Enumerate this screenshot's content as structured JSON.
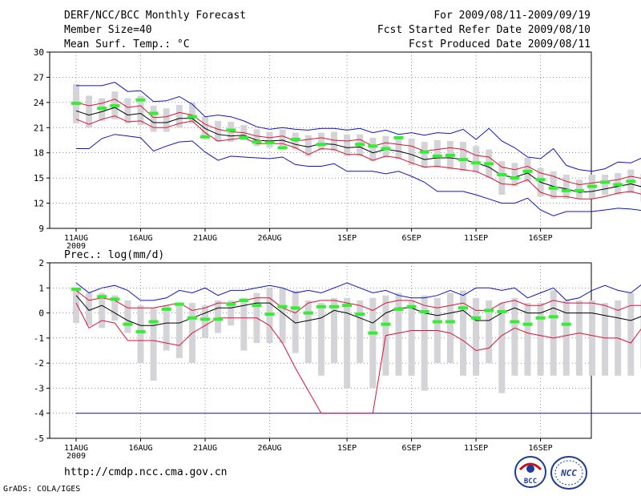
{
  "header": {
    "title": "DERF/NCC/BCC Monthly Forecast",
    "member_size": "Member Size=40",
    "variable": "Mean Surf. Temp.: °C",
    "forecast_range": "For 2009/08/11-2009/09/19",
    "started_date": "Fcst Started Refer Date 2009/08/10",
    "produced_date": "Fcst Produced Date 2009/08/11"
  },
  "footer": {
    "url": "http://cmdp.ncc.cma.gov.cn",
    "credit": "GrADS: COLA/IGES",
    "logo_bcc": "BCC",
    "logo_ncc": "NCC"
  },
  "colors": {
    "box": "#d4d4d8",
    "mean": "#000000",
    "spread": "#dd1133",
    "extreme": "#1111cc",
    "obs": "#33ee33",
    "grid": "#555555"
  },
  "chart_data": [
    {
      "type": "ensemble_boxplot",
      "title": "Mean Surf. Temp.: °C",
      "ylim": [
        9,
        30
      ],
      "yticks": [
        9,
        12,
        15,
        18,
        21,
        24,
        27,
        30
      ],
      "ytick_labels": [
        "9",
        "12",
        "15",
        "18",
        "21",
        "24",
        "27",
        "30"
      ],
      "xtick_days": [
        0,
        5,
        10,
        15,
        21,
        26,
        31,
        36
      ],
      "xtick_labels": [
        "11AUG",
        "16AUG",
        "21AUG",
        "26AUG",
        "1SEP",
        "6SEP",
        "11SEP",
        "16SEP"
      ],
      "year_label": "2009",
      "grid": true,
      "box_low": [
        21.5,
        21,
        21.8,
        22,
        21.5,
        21.3,
        20.5,
        20.5,
        21,
        21.5,
        20,
        19.3,
        19.3,
        19.5,
        18.8,
        18.6,
        18.8,
        18.4,
        17.6,
        18.3,
        18.2,
        17.6,
        17.6,
        17,
        17.4,
        17.2,
        16.5,
        16.2,
        16.2,
        16,
        15.8,
        15.6,
        15,
        13,
        14,
        14.5,
        12.8,
        12.5,
        12.5,
        12.5,
        12.5,
        13,
        13,
        13.2,
        12.2,
        12
      ],
      "box_high": [
        26.2,
        24.8,
        24.5,
        25.3,
        24.5,
        24.8,
        23.6,
        23.3,
        23.7,
        24,
        22.3,
        21.8,
        21.7,
        21.3,
        20.8,
        20.5,
        20.8,
        20.4,
        20.1,
        20.4,
        20.5,
        20.2,
        20.2,
        19.8,
        20,
        19.8,
        19.7,
        19.3,
        19.5,
        19.4,
        19.3,
        18.8,
        18.4,
        17,
        16.8,
        17.4,
        16.2,
        15.8,
        15.4,
        14.8,
        15.4,
        15.4,
        15.6,
        16,
        15.5,
        15
      ],
      "min": [
        18.5,
        18.5,
        19.7,
        20.2,
        20,
        19.8,
        18.2,
        18.8,
        19.3,
        19.4,
        18.1,
        17.1,
        17.6,
        17.5,
        17.4,
        17.3,
        17.5,
        16.6,
        16.4,
        16.4,
        16.7,
        15.8,
        15.8,
        15.8,
        15.5,
        15.8,
        15.2,
        14.5,
        13.4,
        13.4,
        13.4,
        13,
        12.5,
        12,
        12,
        12.6,
        11.2,
        10.5,
        11,
        11,
        11,
        11.2,
        11.4,
        11.3,
        11.1,
        10.5
      ],
      "max": [
        26,
        26,
        26,
        26.4,
        25.3,
        25.4,
        24.1,
        24.2,
        24.7,
        23.8,
        22.3,
        22.5,
        22.3,
        21.8,
        21.1,
        20.8,
        21,
        20.8,
        20.7,
        20.9,
        20.9,
        20.7,
        20.9,
        20.4,
        20.7,
        20.2,
        20.4,
        20.1,
        20.4,
        20.3,
        20.8,
        19.6,
        20.9,
        19.4,
        18.6,
        17.5,
        17.3,
        18.5,
        16.5,
        16,
        15.8,
        16.1,
        16.9,
        16.8,
        17.5,
        16.8
      ],
      "spread_low": [
        22,
        21.4,
        22,
        22.4,
        21.7,
        21.8,
        21,
        21,
        21.5,
        21.8,
        20.4,
        19.4,
        19.6,
        19.8,
        19.1,
        19.1,
        19.1,
        18.6,
        17.8,
        18.5,
        18.4,
        17.8,
        17.8,
        17.1,
        17.6,
        17.4,
        16.8,
        16.3,
        16.4,
        16.2,
        16,
        15.8,
        15.1,
        14.3,
        14.2,
        14.8,
        13.3,
        12.8,
        12.8,
        12.5,
        12.5,
        12.8,
        13.2,
        13.4,
        13,
        12.5
      ],
      "spread_high": [
        24,
        23.6,
        23.9,
        24.4,
        23.4,
        23.6,
        22.2,
        22.3,
        22.8,
        22.5,
        21.4,
        20.8,
        20.5,
        20.4,
        20,
        19.8,
        20,
        19.4,
        19.6,
        19.8,
        19.5,
        19.4,
        19.6,
        18.8,
        19.2,
        19,
        18.8,
        18.2,
        18.4,
        18.6,
        18.4,
        17.7,
        17.5,
        16.3,
        16,
        16.4,
        15.6,
        15.2,
        14.6,
        14.2,
        14.4,
        14.6,
        14.8,
        15.2,
        14.9,
        14.3
      ],
      "mean": [
        23,
        22.5,
        22.9,
        23.4,
        22.5,
        22.7,
        21.6,
        21.6,
        22.1,
        22.1,
        20.9,
        20.2,
        20,
        20.1,
        19.5,
        19.4,
        19.5,
        19,
        18.7,
        19.1,
        19,
        18.6,
        18.7,
        18,
        18.4,
        18.2,
        17.8,
        17.2,
        17.4,
        17.4,
        17.2,
        16.8,
        16.3,
        15.3,
        15.1,
        15.6,
        14.5,
        14,
        13.7,
        13.3,
        13.4,
        13.7,
        14,
        14.3,
        13.9,
        13.4
      ],
      "obs_bars": [
        [
          0,
          23.9
        ],
        [
          2,
          23.3
        ],
        [
          3,
          23.6
        ],
        [
          5,
          24.3
        ],
        [
          6,
          22.7
        ],
        [
          9,
          22.3
        ],
        [
          10,
          19.9
        ],
        [
          12,
          20.7
        ],
        [
          13,
          19.8
        ],
        [
          14,
          19.3
        ],
        [
          15,
          19.2
        ],
        [
          16,
          18.6
        ],
        [
          17,
          19.6
        ],
        [
          19,
          19
        ],
        [
          22,
          19
        ],
        [
          23,
          18.8
        ],
        [
          24,
          18.5
        ],
        [
          25,
          19.8
        ],
        [
          27,
          18.1
        ],
        [
          28,
          17.6
        ],
        [
          29,
          17.7
        ],
        [
          30,
          17.2
        ],
        [
          31,
          16.8
        ],
        [
          32,
          16.7
        ],
        [
          33,
          15.4
        ],
        [
          34,
          15
        ],
        [
          35,
          15.8
        ],
        [
          36,
          14.8
        ],
        [
          37,
          13.8
        ],
        [
          38,
          13.5
        ],
        [
          39,
          13.5
        ],
        [
          40,
          14
        ],
        [
          41,
          14.5
        ],
        [
          42,
          14.2
        ],
        [
          43,
          14.6
        ],
        [
          45,
          13.7
        ]
      ]
    },
    {
      "type": "ensemble_boxplot",
      "title": "Prec.: log(mm/d)",
      "ylim": [
        -5,
        2
      ],
      "yticks": [
        -5,
        -4,
        -3,
        -2,
        -1,
        0,
        1,
        2
      ],
      "ytick_labels": [
        "-5",
        "-4",
        "-3",
        "-2",
        "-1",
        "0",
        "1",
        "2"
      ],
      "xtick_days": [
        0,
        5,
        10,
        15,
        21,
        26,
        31,
        36
      ],
      "xtick_labels": [
        "11AUG",
        "16AUG",
        "21AUG",
        "26AUG",
        "1SEP",
        "6SEP",
        "11SEP",
        "16SEP"
      ],
      "year_label": "2009",
      "grid": true,
      "box_low": [
        -0.4,
        -0.5,
        -0.6,
        -0.3,
        -0.8,
        -2,
        -2.7,
        -1.5,
        -1.8,
        -2,
        -1,
        -0.8,
        -0.5,
        -1.5,
        -1.2,
        -1.2,
        -1.2,
        -1.6,
        -2,
        -2.5,
        -2,
        -3,
        -2,
        -3,
        -2.5,
        -2.5,
        -2.5,
        -3.1,
        -2,
        -2,
        -2.5,
        -2.5,
        -2,
        -3.2,
        -2.5,
        -2.5,
        -2.5,
        -2.5,
        -2.5,
        -2.5,
        -2.5,
        -2.5,
        -2.5,
        -2.5,
        -2.2,
        -2.5
      ],
      "box_high": [
        1,
        0.8,
        0.8,
        0.7,
        0.5,
        0.3,
        0.2,
        0.3,
        0.3,
        0.4,
        0.3,
        0.5,
        0.5,
        0.6,
        0.8,
        1,
        1,
        0.9,
        0.5,
        0.4,
        0.6,
        0.6,
        0.5,
        0.6,
        0.7,
        0.8,
        0.5,
        0.7,
        0.6,
        0.8,
        0.9,
        0.6,
        0.5,
        0.4,
        0.6,
        0.4,
        0.4,
        0.9,
        0.5,
        0.5,
        0.5,
        0.4,
        0.5,
        0.8,
        0.5,
        0.4
      ],
      "min": [
        -4,
        -4,
        -4,
        -4,
        -4,
        -4,
        -4,
        -4,
        -4,
        -4,
        -4,
        -4,
        -4,
        -4,
        -4,
        -4,
        -4,
        -4,
        -4,
        -4,
        -4,
        -4,
        -4,
        -4,
        -4,
        -4,
        -4,
        -4,
        -4,
        -4,
        -4,
        -4,
        -4,
        -4,
        -4,
        -4,
        -4,
        -4,
        -4,
        -4,
        -4,
        -4,
        -4,
        -4,
        -4,
        -4
      ],
      "max": [
        1.2,
        0.8,
        1,
        1.1,
        0.9,
        0.5,
        0.5,
        0.6,
        0.9,
        0.8,
        1,
        0.7,
        0.9,
        0.9,
        1,
        1.1,
        1,
        0.8,
        0.9,
        0.8,
        1,
        1.2,
        1,
        0.8,
        0.9,
        0.7,
        0.6,
        0.6,
        0.7,
        0.9,
        0.7,
        1,
        1,
        0.9,
        1,
        0.6,
        0.8,
        1,
        0.5,
        0.6,
        0.9,
        1.1,
        0.9,
        0.8,
        1.2,
        0.5
      ],
      "spread_low": [
        0.4,
        -0.6,
        -0.3,
        -0.4,
        -1.1,
        -1.1,
        -1.1,
        -1.2,
        -1.3,
        -0.8,
        -0.5,
        -0.2,
        -0.2,
        -0.2,
        -0.2,
        -0.5,
        -1.2,
        -2.2,
        -3.1,
        -4,
        -4,
        -4,
        -4,
        -4,
        -0.9,
        -0.8,
        -0.7,
        -0.7,
        -0.7,
        -0.8,
        -1.1,
        -1.5,
        -1.4,
        -0.9,
        -0.6,
        -0.8,
        -0.9,
        -1,
        -0.9,
        -0.8,
        -0.9,
        -1,
        -1,
        -1.2,
        -0.5,
        -1.1
      ],
      "spread_high": [
        0.9,
        0.5,
        0.6,
        0.5,
        0.2,
        0.2,
        0.2,
        0.3,
        0.4,
        0.1,
        0.2,
        0.4,
        0.4,
        0.5,
        0.6,
        0.6,
        0.2,
        0,
        0.4,
        0.5,
        0.5,
        0.4,
        0.3,
        0.1,
        0.4,
        0.5,
        0.5,
        0.3,
        0.2,
        0.3,
        0.4,
        0.1,
        0.1,
        0.4,
        0.5,
        0.3,
        0.3,
        0.5,
        0.4,
        0.4,
        0.4,
        0.3,
        0.1,
        0.3,
        0.3,
        0
      ],
      "mean": [
        0.7,
        0.1,
        0.3,
        0,
        -0.3,
        -0.5,
        -0.5,
        -0.4,
        -0.4,
        -0.2,
        0,
        0.2,
        0.2,
        0.3,
        0.4,
        0.4,
        0,
        -0.4,
        -0.3,
        -0.2,
        0.1,
        0,
        -0.2,
        -0.4,
        0,
        0.2,
        0.2,
        0,
        -0.1,
        0,
        0.1,
        -0.3,
        -0.3,
        0,
        0.2,
        0,
        0,
        0.2,
        0,
        0,
        0,
        -0.1,
        -0.2,
        -0.3,
        -0.1,
        -0.4
      ],
      "obs_bars": [
        [
          0,
          0.95
        ],
        [
          2,
          0.65
        ],
        [
          3,
          0.55
        ],
        [
          4,
          -0.45
        ],
        [
          5,
          -0.75
        ],
        [
          6,
          -0.35
        ],
        [
          7,
          0.15
        ],
        [
          8,
          0.35
        ],
        [
          9,
          -0.2
        ],
        [
          10,
          -0.25
        ],
        [
          11,
          -0.25
        ],
        [
          12,
          0.35
        ],
        [
          13,
          0.5
        ],
        [
          14,
          0.3
        ],
        [
          15,
          -0.05
        ],
        [
          16,
          0.25
        ],
        [
          17,
          0.2
        ],
        [
          18,
          0
        ],
        [
          19,
          0.25
        ],
        [
          20,
          0.25
        ],
        [
          21,
          0.3
        ],
        [
          22,
          -0.05
        ],
        [
          23,
          -0.8
        ],
        [
          24,
          -0.45
        ],
        [
          25,
          0.15
        ],
        [
          26,
          0.25
        ],
        [
          27,
          0.05
        ],
        [
          28,
          -0.35
        ],
        [
          29,
          -0.35
        ],
        [
          30,
          0.2
        ],
        [
          31,
          -0.2
        ],
        [
          32,
          0.1
        ],
        [
          33,
          0.05
        ],
        [
          34,
          -0.35
        ],
        [
          35,
          -0.45
        ],
        [
          36,
          -0.2
        ],
        [
          37,
          -0.15
        ],
        [
          38,
          -0.45
        ]
      ]
    }
  ]
}
